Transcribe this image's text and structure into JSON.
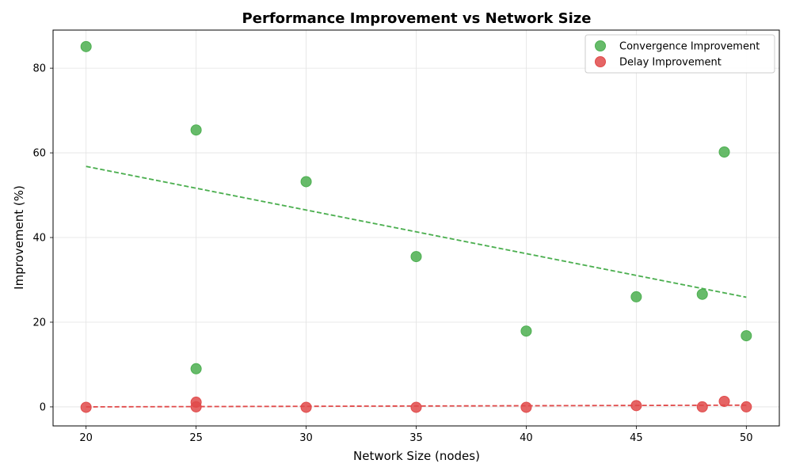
{
  "chart_data": {
    "type": "scatter",
    "title": "Performance Improvement vs Network Size",
    "xlabel": "Network Size (nodes)",
    "ylabel": "Improvement (%)",
    "xlim": [
      18.5,
      51.5
    ],
    "ylim": [
      -4.5,
      89
    ],
    "xticks": [
      20,
      25,
      30,
      35,
      40,
      45,
      50
    ],
    "yticks": [
      0,
      20,
      40,
      60,
      80
    ],
    "grid": true,
    "legend_position": "top-right",
    "series": [
      {
        "name": "Convergence Improvement",
        "color": "#4caf50",
        "points": [
          {
            "x": 20,
            "y": 85.1
          },
          {
            "x": 25,
            "y": 65.4
          },
          {
            "x": 25,
            "y": 9.0
          },
          {
            "x": 30,
            "y": 53.2
          },
          {
            "x": 35,
            "y": 35.5
          },
          {
            "x": 40,
            "y": 17.9
          },
          {
            "x": 45,
            "y": 26.0
          },
          {
            "x": 48,
            "y": 26.6
          },
          {
            "x": 49,
            "y": 60.2
          },
          {
            "x": 50,
            "y": 16.8
          }
        ],
        "trend": {
          "x": [
            20,
            50
          ],
          "y": [
            56.8,
            25.9
          ]
        }
      },
      {
        "name": "Delay Improvement",
        "color": "#e04a4a",
        "points": [
          {
            "x": 20,
            "y": -0.1
          },
          {
            "x": 25,
            "y": 1.1
          },
          {
            "x": 25,
            "y": 0.0
          },
          {
            "x": 30,
            "y": -0.1
          },
          {
            "x": 35,
            "y": -0.1
          },
          {
            "x": 40,
            "y": -0.1
          },
          {
            "x": 45,
            "y": 0.3
          },
          {
            "x": 48,
            "y": 0.0
          },
          {
            "x": 49,
            "y": 1.3
          },
          {
            "x": 50,
            "y": 0.0
          }
        ],
        "trend": {
          "x": [
            20,
            50
          ],
          "y": [
            0.0,
            0.4
          ]
        }
      }
    ]
  }
}
